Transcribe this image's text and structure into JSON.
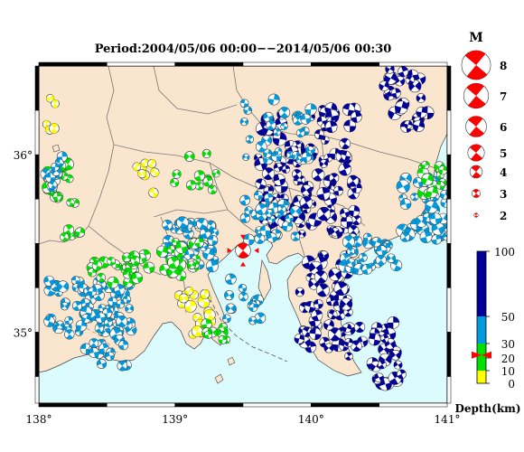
{
  "title": "Period:2004/05/06 00:00−−2014/05/06 00:30",
  "map": {
    "lon_range": [
      138,
      141
    ],
    "lat_range": [
      34.6,
      36.5
    ],
    "lon_ticks": [
      {
        "value": 138,
        "label": "138°"
      },
      {
        "value": 139,
        "label": "139°"
      },
      {
        "value": 140,
        "label": "140°"
      },
      {
        "value": 141,
        "label": "141°"
      }
    ],
    "lat_ticks": [
      {
        "value": 36,
        "label": "36°"
      },
      {
        "value": 35,
        "label": "35°"
      }
    ],
    "colors": {
      "land": "#fae6cf",
      "sea": "#dcfbfd",
      "shallow": "#ffff00",
      "mid": "#00e000",
      "deep": "#0099dd",
      "deeper": "#000099",
      "focus": "#ff0000"
    }
  },
  "magnitude_legend": {
    "title": "M",
    "items": [
      {
        "label": "8",
        "m": 8
      },
      {
        "label": "7",
        "m": 7
      },
      {
        "label": "6",
        "m": 6
      },
      {
        "label": "5",
        "m": 5
      },
      {
        "label": "4",
        "m": 4
      },
      {
        "label": "3",
        "m": 3
      },
      {
        "label": "2",
        "m": 2
      }
    ]
  },
  "depth_legend": {
    "title": "Depth(km)",
    "ticks": [
      {
        "value": 100,
        "label": "100"
      },
      {
        "value": 50,
        "label": "50"
      },
      {
        "value": 30,
        "label": "30"
      },
      {
        "value": 20,
        "label": "20"
      },
      {
        "value": 10,
        "label": "10"
      },
      {
        "value": 0,
        "label": "0"
      }
    ],
    "marker_depth": 22
  },
  "focus_event": {
    "lon": 139.5,
    "lat": 35.46,
    "m": 5
  }
}
